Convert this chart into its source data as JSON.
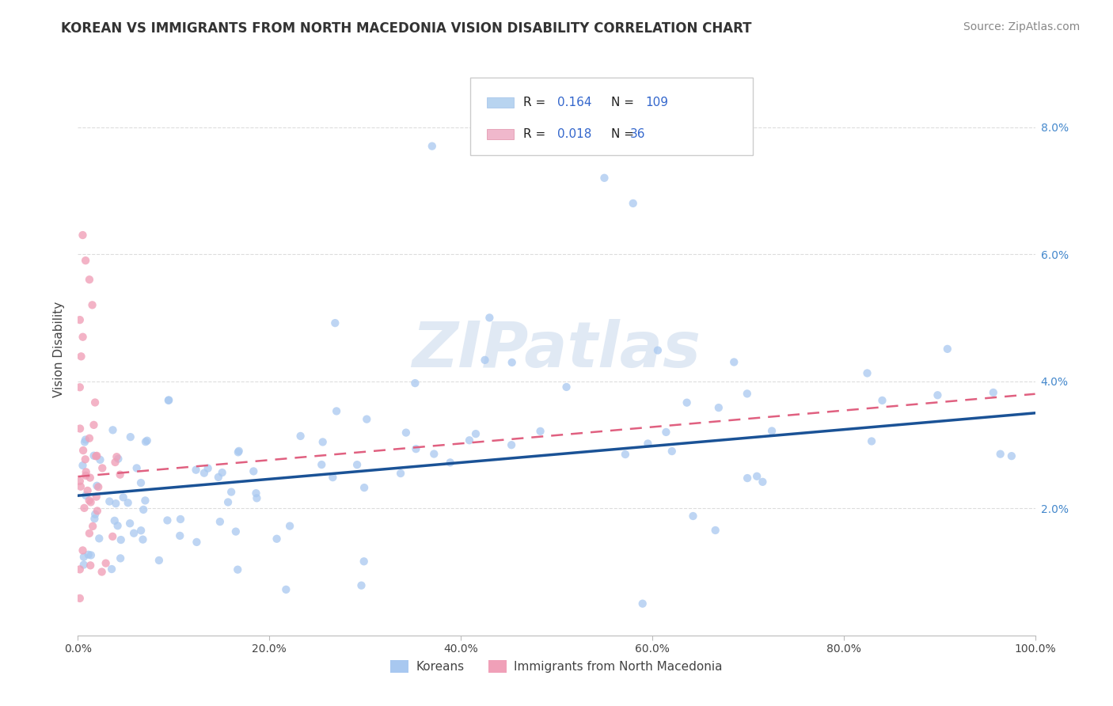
{
  "title": "KOREAN VS IMMIGRANTS FROM NORTH MACEDONIA VISION DISABILITY CORRELATION CHART",
  "source": "Source: ZipAtlas.com",
  "ylabel": "Vision Disability",
  "watermark": "ZIPatlas",
  "korean_scatter_color": "#a8c8f0",
  "macedonian_scatter_color": "#f0a0b8",
  "korean_line_color": "#1a5296",
  "macedonian_line_color": "#e06080",
  "background_color": "#ffffff",
  "grid_color": "#dddddd",
  "xlim": [
    0,
    1.0
  ],
  "ylim": [
    0,
    0.09
  ],
  "xtick_vals": [
    0.0,
    0.2,
    0.4,
    0.6,
    0.8,
    1.0
  ],
  "xtick_labels": [
    "0.0%",
    "20.0%",
    "40.0%",
    "60.0%",
    "80.0%",
    "100.0%"
  ],
  "ytick_vals": [
    0.02,
    0.04,
    0.06,
    0.08
  ],
  "ytick_labels_right": [
    "2.0%",
    "4.0%",
    "6.0%",
    "8.0%"
  ],
  "legend_box_color": "#c8d8f0",
  "legend_box_color2": "#f0c0d0",
  "title_fontsize": 12,
  "axis_label_fontsize": 11,
  "tick_fontsize": 10,
  "source_fontsize": 10,
  "legend_R1": "0.164",
  "legend_N1": "109",
  "legend_R2": "0.018",
  "legend_N2": "36",
  "korean_trend_x0": 0.0,
  "korean_trend_y0": 0.022,
  "korean_trend_x1": 1.0,
  "korean_trend_y1": 0.035,
  "mac_trend_x0": 0.0,
  "mac_trend_y0": 0.025,
  "mac_trend_x1": 1.0,
  "mac_trend_y1": 0.038
}
